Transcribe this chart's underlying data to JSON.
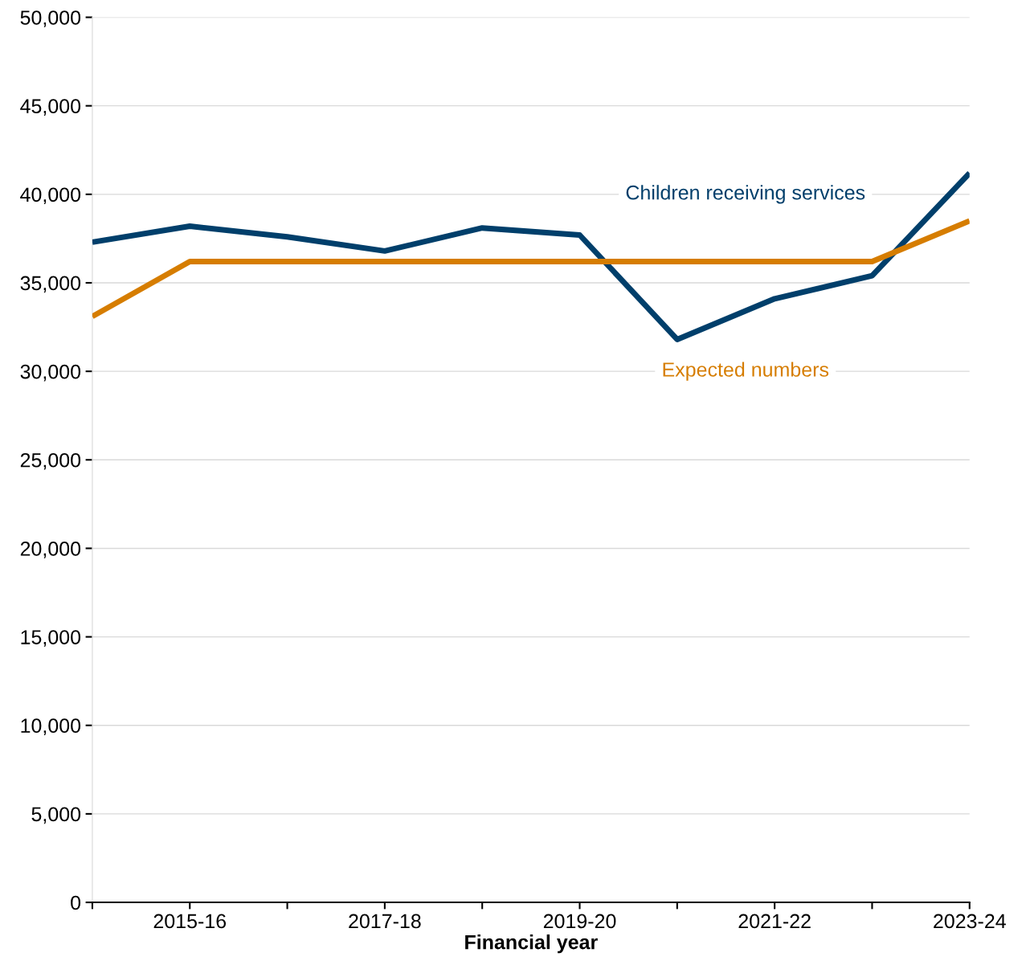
{
  "chart_data": {
    "type": "line",
    "xlabel": "Financial year",
    "categories": [
      null,
      "2015-16",
      null,
      "2017-18",
      null,
      "2019-20",
      null,
      "2021-22",
      null,
      "2023-24"
    ],
    "series": [
      {
        "name": "Children receiving services",
        "color": "#003f6b",
        "values": [
          37300,
          38200,
          37600,
          36800,
          38100,
          37700,
          31800,
          34100,
          35400,
          41200
        ]
      },
      {
        "name": "Expected numbers",
        "color": "#d67d00",
        "values": [
          33100,
          36200,
          36200,
          36200,
          36200,
          36200,
          36200,
          36200,
          36200,
          38500
        ]
      }
    ],
    "ylim": [
      0,
      50000
    ],
    "yticks": [
      0,
      {
        "value": 5000,
        "label": "5,000"
      },
      {
        "value": 10000,
        "label": "10,000"
      },
      {
        "value": 15000,
        "label": "15,000"
      },
      {
        "value": 20000,
        "label": "20,000"
      },
      {
        "value": 25000,
        "label": "25,000"
      },
      {
        "value": 30000,
        "label": "30,000"
      },
      {
        "value": 35000,
        "label": "35,000"
      },
      {
        "value": 40000,
        "label": "40,000"
      },
      {
        "value": 45000,
        "label": "45,000"
      },
      {
        "value": 50000,
        "label": "50,000"
      }
    ],
    "grid": "y",
    "legend": false,
    "marker": "none",
    "line_style": "solid"
  }
}
